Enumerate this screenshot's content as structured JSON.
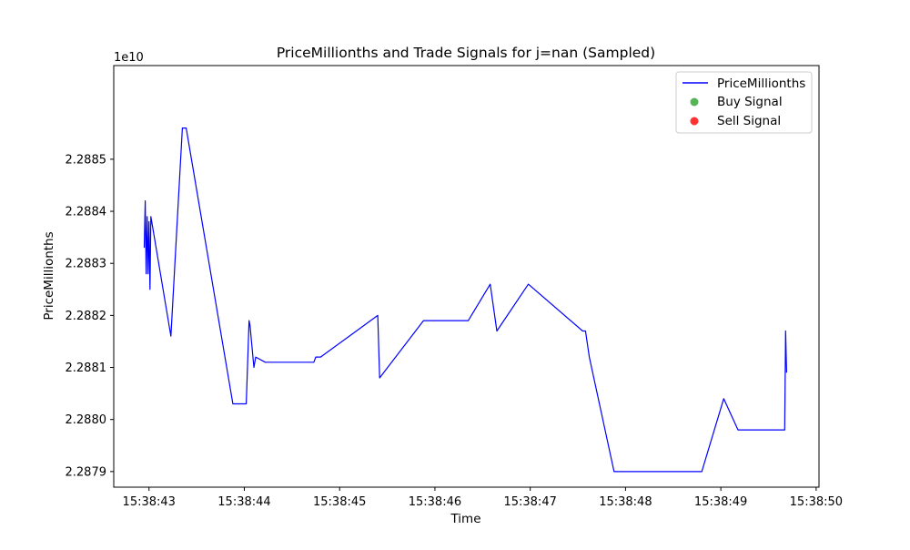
{
  "chart_data": {
    "type": "line",
    "title": "PriceMillionths and Trade Signals for j=nan (Sampled)",
    "xlabel": "Time",
    "ylabel": "PriceMillionths",
    "y_offset_label": "1e10",
    "y_scale": 10000000000,
    "xlim_seconds": [
      42.63,
      50.03
    ],
    "ylim": [
      2.28787,
      2.28868
    ],
    "x_ticks": [
      {
        "value": 43,
        "label": "15:38:43"
      },
      {
        "value": 44,
        "label": "15:38:44"
      },
      {
        "value": 45,
        "label": "15:38:45"
      },
      {
        "value": 46,
        "label": "15:38:46"
      },
      {
        "value": 47,
        "label": "15:38:47"
      },
      {
        "value": 48,
        "label": "15:38:48"
      },
      {
        "value": 49,
        "label": "15:38:49"
      },
      {
        "value": 50,
        "label": "15:38:50"
      }
    ],
    "y_ticks": [
      {
        "value": 2.2879,
        "label": "2.2879"
      },
      {
        "value": 2.288,
        "label": "2.2880"
      },
      {
        "value": 2.2881,
        "label": "2.2881"
      },
      {
        "value": 2.2882,
        "label": "2.2882"
      },
      {
        "value": 2.2883,
        "label": "2.2883"
      },
      {
        "value": 2.2884,
        "label": "2.2884"
      },
      {
        "value": 2.2885,
        "label": "2.2885"
      }
    ],
    "grid": false,
    "legend": {
      "placement": "top-right",
      "entries": [
        {
          "label": "PriceMillionths",
          "kind": "line",
          "color": "#0000ff"
        },
        {
          "label": "Buy Signal",
          "kind": "marker",
          "color": "#2ca02c"
        },
        {
          "label": "Sell Signal",
          "kind": "marker",
          "color": "#ff0000"
        }
      ]
    },
    "series": [
      {
        "name": "PriceMillionths",
        "color": "#0000ff",
        "x": [
          42.95,
          42.96,
          42.97,
          42.98,
          42.99,
          43.0,
          43.01,
          43.02,
          43.23,
          43.35,
          43.39,
          43.88,
          44.02,
          44.05,
          44.06,
          44.1,
          44.12,
          44.22,
          44.3,
          44.4,
          44.55,
          44.73,
          44.75,
          44.8,
          45.4,
          45.42,
          45.88,
          46.3,
          46.32,
          46.35,
          46.58,
          46.65,
          46.98,
          47.55,
          47.58,
          47.62,
          47.88,
          48.8,
          49.03,
          49.18,
          49.3,
          49.35,
          49.6,
          49.67,
          49.68,
          49.69
        ],
        "y": [
          2.28833,
          2.28842,
          2.28828,
          2.28839,
          2.28828,
          2.28838,
          2.28825,
          2.28839,
          2.28816,
          2.28856,
          2.28856,
          2.28803,
          2.28803,
          2.28819,
          2.28818,
          2.2881,
          2.28812,
          2.28811,
          2.28811,
          2.28811,
          2.28811,
          2.28811,
          2.28812,
          2.28812,
          2.2882,
          2.28808,
          2.28819,
          2.28819,
          2.28819,
          2.28819,
          2.28826,
          2.28817,
          2.28826,
          2.28817,
          2.28817,
          2.28812,
          2.2879,
          2.2879,
          2.28804,
          2.28798,
          2.28798,
          2.28798,
          2.28798,
          2.28798,
          2.28817,
          2.28809
        ]
      },
      {
        "name": "Buy Signal",
        "color": "#2ca02c",
        "x": [],
        "y": []
      },
      {
        "name": "Sell Signal",
        "color": "#ff0000",
        "x": [],
        "y": []
      }
    ]
  }
}
